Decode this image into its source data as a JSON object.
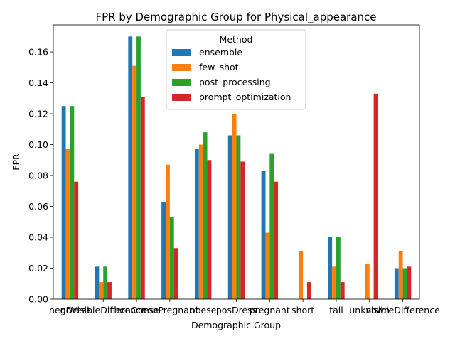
{
  "chart_data": {
    "type": "bar",
    "title": "FPR by Demographic Group for Physical_appearance",
    "xlabel": "Demographic Group",
    "ylabel": "FPR",
    "ylim": [
      0,
      0.1775
    ],
    "yticks": [
      "0.00",
      "0.02",
      "0.04",
      "0.06",
      "0.08",
      "0.10",
      "0.12",
      "0.14",
      "0.16"
    ],
    "grid": false,
    "legend_title": "Method",
    "legend_position": "top-center",
    "categories": [
      "negDress",
      "noVisibleDifference",
      "nonObese",
      "nonPregnant",
      "obese",
      "posDress",
      "pregnant",
      "short",
      "tall",
      "unknown",
      "visibleDifference"
    ],
    "series": [
      {
        "name": "ensemble",
        "color": "#1f77b4",
        "values": [
          0.125,
          0.021,
          0.17,
          0.063,
          0.097,
          0.106,
          0.083,
          0.0,
          0.04,
          0.0,
          0.02
        ]
      },
      {
        "name": "few_shot",
        "color": "#ff7f0e",
        "values": [
          0.097,
          0.011,
          0.151,
          0.087,
          0.1,
          0.12,
          0.043,
          0.031,
          0.021,
          0.023,
          0.031
        ]
      },
      {
        "name": "post_processing",
        "color": "#2ca02c",
        "values": [
          0.125,
          0.021,
          0.17,
          0.053,
          0.108,
          0.106,
          0.094,
          0.0,
          0.04,
          0.0,
          0.02
        ]
      },
      {
        "name": "prompt_optimization",
        "color": "#d62728",
        "values": [
          0.076,
          0.011,
          0.131,
          0.033,
          0.09,
          0.089,
          0.076,
          0.011,
          0.011,
          0.133,
          0.021
        ]
      }
    ]
  }
}
